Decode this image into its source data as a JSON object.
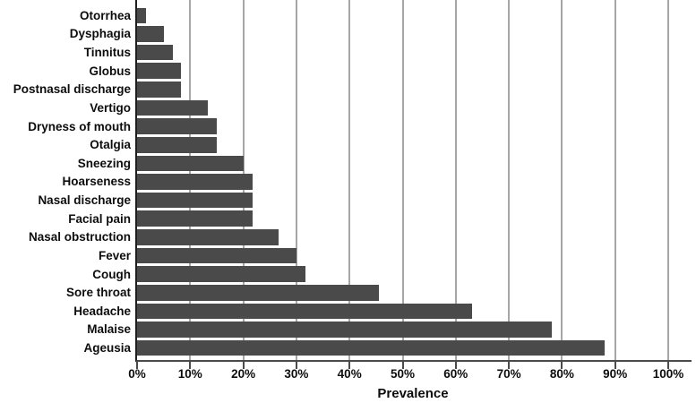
{
  "chart_data": {
    "type": "bar",
    "orientation": "horizontal",
    "title": "",
    "xlabel": "Prevalence",
    "ylabel": "",
    "xlim": [
      0,
      100
    ],
    "grid": "vertical",
    "legend": "none",
    "bar_color": "#4a4a4a",
    "gridline_color": "#a6a6a6",
    "y_axis_color": "#1f1f1f",
    "x_axis_color": "#4a4a4a",
    "x_ticks": [
      {
        "value": 0,
        "label": "0%"
      },
      {
        "value": 10,
        "label": "10%"
      },
      {
        "value": 20,
        "label": "20%"
      },
      {
        "value": 30,
        "label": "30%"
      },
      {
        "value": 40,
        "label": "40%"
      },
      {
        "value": 50,
        "label": "50%"
      },
      {
        "value": 60,
        "label": "60%"
      },
      {
        "value": 70,
        "label": "70%"
      },
      {
        "value": 80,
        "label": "80%"
      },
      {
        "value": 90,
        "label": "90%"
      },
      {
        "value": 100,
        "label": "100%"
      }
    ],
    "categories": [
      "Otorrhea",
      "Dysphagia",
      "Tinnitus",
      "Globus",
      "Postnasal discharge",
      "Vertigo",
      "Dryness of mouth",
      "Otalgia",
      "Sneezing",
      "Hoarseness",
      "Nasal discharge",
      "Facial pain",
      "Nasal obstruction",
      "Fever",
      "Cough",
      "Sore throat",
      "Headache",
      "Malaise",
      "Ageusia"
    ],
    "values": [
      1.7,
      5,
      6.7,
      8.3,
      8.3,
      13.3,
      15,
      15,
      20,
      21.7,
      21.7,
      21.7,
      26.7,
      30,
      31.7,
      45.5,
      63,
      78,
      88
    ]
  }
}
